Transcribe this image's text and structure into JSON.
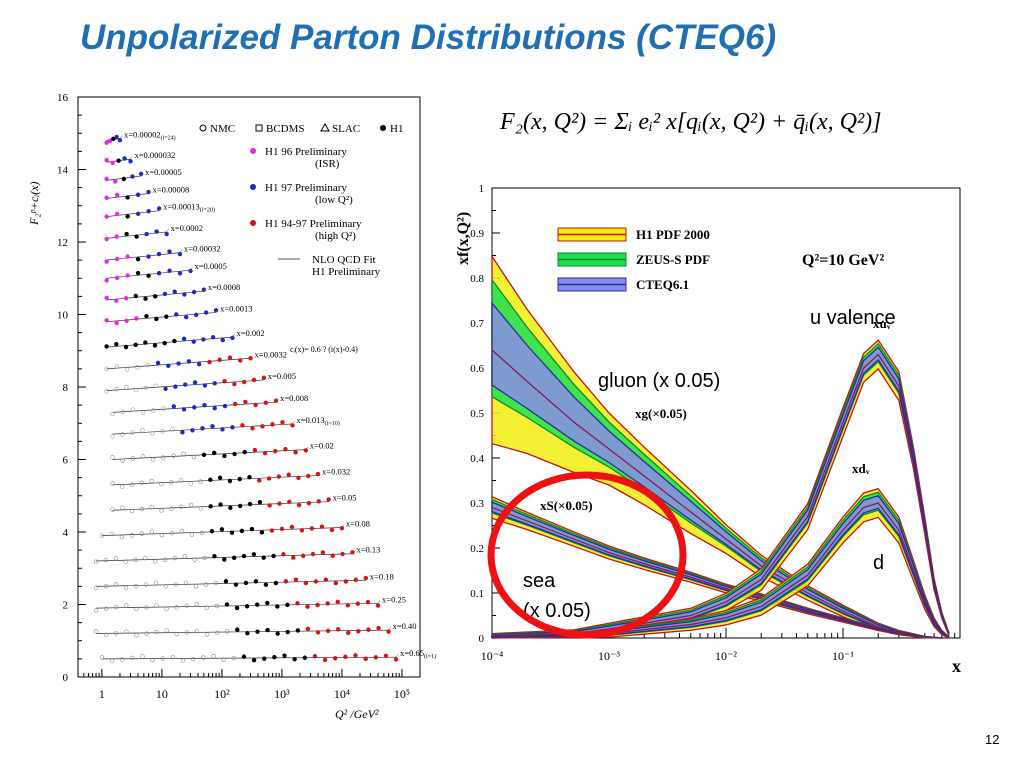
{
  "slide": {
    "title": "Unpolarized Parton Distributions (CTEQ6)",
    "page_number": "12",
    "formula": "F₂(x, Q²) = Σᵢ eᵢ² x[qᵢ(x, Q²) + q̄ᵢ(x, Q²)]",
    "colors": {
      "title": "#1f6fb2",
      "circle": "#ee1111"
    }
  },
  "chart_data": [
    {
      "type": "scatter",
      "ylabel": "F₂ᵖ+cᵢ(x)",
      "xlabel": "Q² /GeV²",
      "xscale": "log",
      "xlim": [
        0.4,
        200000
      ],
      "ylim": [
        0,
        16
      ],
      "xticks": [
        "1",
        "10",
        "10²",
        "10³",
        "10⁴",
        "10⁵"
      ],
      "yticks": [
        "0",
        "2",
        "4",
        "6",
        "8",
        "10",
        "12",
        "14",
        "16"
      ],
      "legend": [
        {
          "label": "NMC",
          "marker": "open-circle"
        },
        {
          "label": "BCDMS",
          "marker": "open-square"
        },
        {
          "label": "SLAC",
          "marker": "open-triangle"
        },
        {
          "label": "H1",
          "marker": "filled-circle"
        },
        {
          "label": "H1 96 Preliminary",
          "sub": "(ISR)",
          "color": "#ee22ee"
        },
        {
          "label": "H1 97 Preliminary",
          "sub": "(low Q²)",
          "color": "#1a2ad0"
        },
        {
          "label": "H1 94-97 Preliminary",
          "sub": "(high Q²)",
          "color": "#dd1111"
        },
        {
          "label": "NLO QCD Fit",
          "sub": "H1 Preliminary",
          "marker": "line"
        }
      ],
      "annotation": "cᵢ(x)= 0.6 ? (i(x)-0.4)",
      "bins": [
        {
          "label": "x=0.00002",
          "i": "(i=24)",
          "offset": 14.8,
          "q2": [
            1.2,
            2
          ]
        },
        {
          "label": "x=0.000032",
          "offset": 14.2,
          "q2": [
            1.2,
            3
          ]
        },
        {
          "label": "x=0.00005",
          "offset": 13.7,
          "q2": [
            1.2,
            4.5
          ]
        },
        {
          "label": "x=0.00008",
          "offset": 13.2,
          "q2": [
            1.2,
            6
          ]
        },
        {
          "label": "x=0.00013",
          "i": "(i=20)",
          "offset": 12.7,
          "q2": [
            1.2,
            9
          ]
        },
        {
          "label": "x=0.0002",
          "offset": 12.1,
          "q2": [
            1.2,
            12
          ]
        },
        {
          "label": "x=0.00032",
          "offset": 11.5,
          "q2": [
            1.2,
            20
          ]
        },
        {
          "label": "x=0.0005",
          "offset": 11.0,
          "q2": [
            1.2,
            30
          ]
        },
        {
          "label": "x=0.0008",
          "offset": 10.4,
          "q2": [
            1.2,
            50
          ]
        },
        {
          "label": "x=0.0013",
          "offset": 9.8,
          "q2": [
            1.2,
            80
          ]
        },
        {
          "label": "x=0.002",
          "offset": 9.1,
          "q2": [
            1.2,
            150
          ]
        },
        {
          "label": "x=0.0032",
          "offset": 8.5,
          "q2": [
            1.2,
            300
          ]
        },
        {
          "label": "x=0.005",
          "offset": 7.9,
          "q2": [
            1.2,
            500
          ]
        },
        {
          "label": "x=0.008",
          "offset": 7.3,
          "q2": [
            1.5,
            800
          ]
        },
        {
          "label": "x=0.013",
          "i": "(i=10)",
          "offset": 6.7,
          "q2": [
            1.5,
            1500
          ]
        },
        {
          "label": "x=0.02",
          "offset": 6.0,
          "q2": [
            1.5,
            2500
          ]
        },
        {
          "label": "x=0.032",
          "offset": 5.3,
          "q2": [
            1.5,
            4000
          ]
        },
        {
          "label": "x=0.05",
          "offset": 4.6,
          "q2": [
            1.5,
            6000
          ]
        },
        {
          "label": "x=0.08",
          "offset": 3.9,
          "q2": [
            1.0,
            10000
          ]
        },
        {
          "label": "x=0.13",
          "offset": 3.2,
          "q2": [
            0.8,
            15000
          ]
        },
        {
          "label": "x=0.18",
          "offset": 2.5,
          "q2": [
            0.8,
            25000
          ]
        },
        {
          "label": "x=0.25",
          "offset": 1.9,
          "q2": [
            0.8,
            40000
          ]
        },
        {
          "label": "x=0.40",
          "offset": 1.2,
          "q2": [
            0.8,
            60000
          ]
        },
        {
          "label": "x=0.65",
          "i": "(i=1)",
          "offset": 0.5,
          "q2": [
            1.0,
            80000
          ]
        }
      ]
    },
    {
      "type": "area",
      "ylabel": "xf(x,Q²)",
      "xlabel": "x",
      "xscale": "log",
      "xlim": [
        0.0001,
        1
      ],
      "ylim": [
        0,
        1
      ],
      "xticks": [
        "10⁻⁴",
        "10⁻³",
        "10⁻²",
        "10⁻¹"
      ],
      "yticks": [
        "0",
        "0.1",
        "0.2",
        "0.3",
        "0.4",
        "0.5",
        "0.6",
        "0.7",
        "0.8",
        "0.9",
        "1"
      ],
      "q2_label": "Q²=10 GeV²",
      "legend": [
        {
          "label": "H1 PDF 2000",
          "color": "#f2ee10",
          "line": "#cc1010"
        },
        {
          "label": "ZEUS-S PDF",
          "color": "#1ee050",
          "line": "#0a8a2a"
        },
        {
          "label": "CTEQ6.1",
          "color": "#8a8ee8",
          "line": "#2a2aa0"
        }
      ],
      "curve_labels": {
        "gluon": "xg(×0.05)",
        "sea": "xS(×0.05)",
        "uv": "xuᵥ",
        "dv": "xdᵥ"
      },
      "annotations": {
        "gluon": "gluon (x 0.05)",
        "uv": "u valence",
        "dv": "d",
        "sea": "sea",
        "sea2": "(x 0.05)"
      },
      "series": [
        {
          "name": "xg(×0.05)",
          "x": [
            0.0001,
            0.0002,
            0.0005,
            0.001,
            0.002,
            0.005,
            0.01,
            0.02,
            0.05,
            0.1,
            0.2,
            0.3,
            0.5,
            0.7
          ],
          "y": [
            0.64,
            0.57,
            0.48,
            0.42,
            0.36,
            0.28,
            0.22,
            0.16,
            0.1,
            0.06,
            0.025,
            0.012,
            0.002,
            0.0
          ],
          "band": [
            0.13,
            0.1,
            0.07,
            0.05,
            0.04,
            0.03,
            0.02,
            0.015,
            0.01,
            0.008,
            0.005,
            0.003,
            0.001,
            0.0
          ]
        },
        {
          "name": "xS(×0.05)",
          "x": [
            0.0001,
            0.0002,
            0.0005,
            0.001,
            0.002,
            0.005,
            0.01,
            0.02,
            0.05,
            0.1,
            0.2,
            0.3,
            0.5,
            0.7
          ],
          "y": [
            0.29,
            0.26,
            0.22,
            0.19,
            0.165,
            0.135,
            0.11,
            0.09,
            0.06,
            0.04,
            0.02,
            0.01,
            0.002,
            0.0
          ],
          "band": [
            0.015,
            0.012,
            0.01,
            0.009,
            0.008,
            0.007,
            0.006,
            0.005,
            0.004,
            0.003,
            0.002,
            0.001,
            0.0,
            0.0
          ]
        },
        {
          "name": "xuᵥ",
          "x": [
            0.0001,
            0.0005,
            0.001,
            0.005,
            0.01,
            0.02,
            0.05,
            0.1,
            0.15,
            0.2,
            0.3,
            0.4,
            0.5,
            0.6,
            0.7,
            0.8
          ],
          "y": [
            0.005,
            0.01,
            0.02,
            0.05,
            0.08,
            0.13,
            0.27,
            0.48,
            0.6,
            0.63,
            0.56,
            0.4,
            0.25,
            0.12,
            0.05,
            0.01
          ],
          "band": [
            0.003,
            0.005,
            0.008,
            0.01,
            0.012,
            0.015,
            0.018,
            0.02,
            0.02,
            0.02,
            0.02,
            0.015,
            0.012,
            0.008,
            0.004,
            0.002
          ]
        },
        {
          "name": "xdᵥ",
          "x": [
            0.0001,
            0.0005,
            0.001,
            0.005,
            0.01,
            0.02,
            0.05,
            0.1,
            0.15,
            0.2,
            0.3,
            0.4,
            0.5,
            0.6,
            0.7,
            0.8
          ],
          "y": [
            0.003,
            0.006,
            0.01,
            0.03,
            0.045,
            0.07,
            0.14,
            0.24,
            0.29,
            0.3,
            0.24,
            0.15,
            0.08,
            0.035,
            0.012,
            0.002
          ],
          "band": [
            0.002,
            0.003,
            0.005,
            0.008,
            0.01,
            0.012,
            0.015,
            0.018,
            0.02,
            0.02,
            0.018,
            0.014,
            0.01,
            0.006,
            0.003,
            0.001
          ]
        }
      ]
    }
  ]
}
